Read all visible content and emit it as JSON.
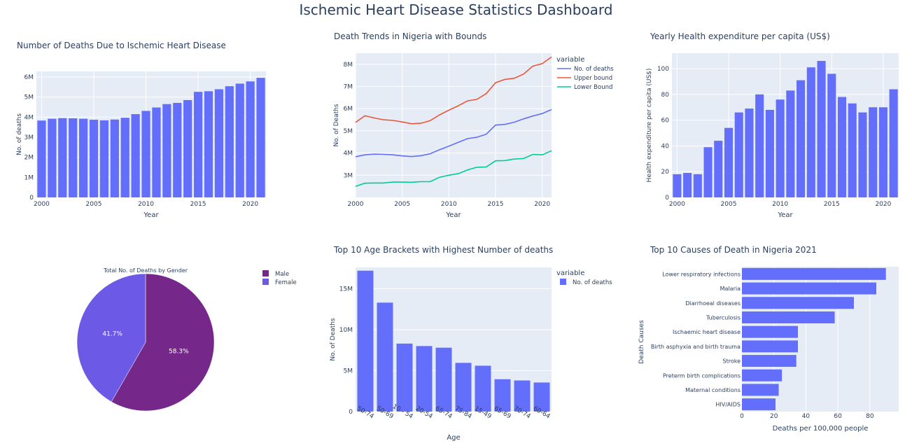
{
  "dashboard": {
    "title": "Ischemic Heart Disease Statistics Dashboard"
  },
  "colors": {
    "plot_bg": "#E5ECF6",
    "grid": "#ffffff",
    "bar": "#636EFA",
    "red": "#EF553B",
    "green": "#00CC96",
    "male": "#76288A",
    "female": "#6C5AE6"
  },
  "chart_data": [
    {
      "type": "bar",
      "title": "Number of Deaths Due to Ischemic Heart Disease",
      "xlabel": "Year",
      "ylabel": "No. of deaths",
      "ylim": [
        0,
        6000000
      ],
      "yticks": [
        0,
        1000000,
        2000000,
        3000000,
        4000000,
        5000000,
        6000000
      ],
      "ytick_labels": [
        "0",
        "1M",
        "2M",
        "3M",
        "4M",
        "5M",
        "6M"
      ],
      "xticks": [
        2000,
        2005,
        2010,
        2015,
        2020
      ],
      "xtick_labels": [
        "2000",
        "2005",
        "2010",
        "2015",
        "2020"
      ],
      "categories": [
        2000,
        2001,
        2002,
        2003,
        2004,
        2005,
        2006,
        2007,
        2008,
        2009,
        2010,
        2011,
        2012,
        2013,
        2014,
        2015,
        2016,
        2017,
        2018,
        2019,
        2020,
        2021
      ],
      "values": [
        3830000,
        3920000,
        3950000,
        3940000,
        3920000,
        3870000,
        3840000,
        3880000,
        3970000,
        4150000,
        4310000,
        4480000,
        4650000,
        4710000,
        4850000,
        5260000,
        5290000,
        5390000,
        5540000,
        5670000,
        5780000,
        5960000
      ]
    },
    {
      "type": "line",
      "title": "Death Trends in Nigeria with Bounds",
      "xlabel": "Year",
      "ylabel": "No. of Deaths",
      "legend_title": "variable",
      "ylim": [
        2000000,
        8500000
      ],
      "yticks": [
        3000000,
        4000000,
        5000000,
        6000000,
        7000000,
        8000000
      ],
      "ytick_labels": [
        "3M",
        "4M",
        "5M",
        "6M",
        "7M",
        "8M"
      ],
      "xticks": [
        2000,
        2005,
        2010,
        2015,
        2020
      ],
      "xtick_labels": [
        "2000",
        "2005",
        "2010",
        "2015",
        "2020"
      ],
      "x": [
        2000,
        2001,
        2002,
        2003,
        2004,
        2005,
        2006,
        2007,
        2008,
        2009,
        2010,
        2011,
        2012,
        2013,
        2014,
        2015,
        2016,
        2017,
        2018,
        2019,
        2020,
        2021
      ],
      "series": [
        {
          "name": "No. of deaths",
          "color": "#636EFA",
          "values": [
            3830000,
            3920000,
            3950000,
            3940000,
            3920000,
            3870000,
            3840000,
            3880000,
            3970000,
            4150000,
            4310000,
            4480000,
            4650000,
            4710000,
            4850000,
            5260000,
            5290000,
            5390000,
            5540000,
            5670000,
            5780000,
            5960000
          ]
        },
        {
          "name": "Upper bound",
          "color": "#EF553B",
          "values": [
            5380000,
            5680000,
            5580000,
            5500000,
            5470000,
            5400000,
            5320000,
            5340000,
            5460000,
            5720000,
            5930000,
            6130000,
            6350000,
            6420000,
            6680000,
            7170000,
            7320000,
            7370000,
            7560000,
            7920000,
            8030000,
            8330000
          ]
        },
        {
          "name": "Lower Bound",
          "color": "#00CC96",
          "values": [
            2500000,
            2640000,
            2650000,
            2650000,
            2690000,
            2690000,
            2680000,
            2710000,
            2710000,
            2910000,
            3000000,
            3070000,
            3240000,
            3360000,
            3370000,
            3650000,
            3660000,
            3730000,
            3750000,
            3940000,
            3920000,
            4100000
          ]
        }
      ]
    },
    {
      "type": "bar",
      "title": "Yearly Health expenditure per capita (US$)",
      "xlabel": "Year",
      "ylabel": "Health expenditure per capita (US$)",
      "ylim": [
        0,
        112
      ],
      "yticks": [
        0,
        20,
        40,
        60,
        80,
        100
      ],
      "ytick_labels": [
        "0",
        "20",
        "40",
        "60",
        "80",
        "100"
      ],
      "xticks": [
        2000,
        2005,
        2010,
        2015,
        2020
      ],
      "xtick_labels": [
        "2000",
        "2005",
        "2010",
        "2015",
        "2020"
      ],
      "categories": [
        2000,
        2001,
        2002,
        2003,
        2004,
        2005,
        2006,
        2007,
        2008,
        2009,
        2010,
        2011,
        2012,
        2013,
        2014,
        2015,
        2016,
        2017,
        2018,
        2019,
        2020,
        2021
      ],
      "values": [
        18,
        19,
        18,
        39,
        44,
        54,
        66,
        69,
        80,
        68,
        76,
        83,
        91,
        101,
        106,
        96,
        78,
        73,
        66,
        70,
        70,
        84
      ]
    },
    {
      "type": "pie",
      "title": "Total No. of Deaths by Gender",
      "labels": [
        "Male",
        "Female"
      ],
      "values": [
        58.3,
        41.7
      ],
      "value_labels": [
        "58.3%",
        "41.7%"
      ],
      "colors": [
        "#76288A",
        "#6C5AE6"
      ]
    },
    {
      "type": "bar",
      "title": "Top 10 Age Brackets with Highest Number of deaths",
      "xlabel": "Age",
      "ylabel": "No. of Deaths",
      "legend_title": "variable",
      "series_name": "No. of deaths",
      "ylim": [
        0,
        17600000
      ],
      "yticks": [
        0,
        5000000,
        10000000,
        15000000
      ],
      "ytick_labels": [
        "0",
        "5M",
        "10M",
        "15M"
      ],
      "categories": [
        "50-74",
        "50-69",
        "10 - 54",
        "20-54",
        "65-74",
        "75-84",
        "15-49",
        "65-69",
        "70-74",
        "60-64"
      ],
      "values": [
        17200000,
        13300000,
        8300000,
        8000000,
        7800000,
        5950000,
        5600000,
        3950000,
        3800000,
        3550000
      ]
    },
    {
      "type": "bar",
      "orientation": "horizontal",
      "title": "Top 10 Causes of Death in Nigeria 2021",
      "xlabel": "Deaths per 100,000 people",
      "ylabel": "Death Causes",
      "xlim": [
        0,
        98
      ],
      "xticks": [
        0,
        20,
        40,
        60,
        80
      ],
      "xtick_labels": [
        "0",
        "20",
        "40",
        "60",
        "80"
      ],
      "categories": [
        "Lower respiratory infections",
        "Malaria",
        "Diarrhoeal diseases",
        "Tuberculosis",
        "Ischaemic heart disease",
        "Birth asphyxia and birth trauma",
        "Stroke",
        "Preterm birth complications",
        "Maternal conditions",
        "HIV/AIDS"
      ],
      "values": [
        90,
        84,
        70,
        58,
        35,
        35,
        34,
        25,
        23,
        21
      ]
    }
  ]
}
